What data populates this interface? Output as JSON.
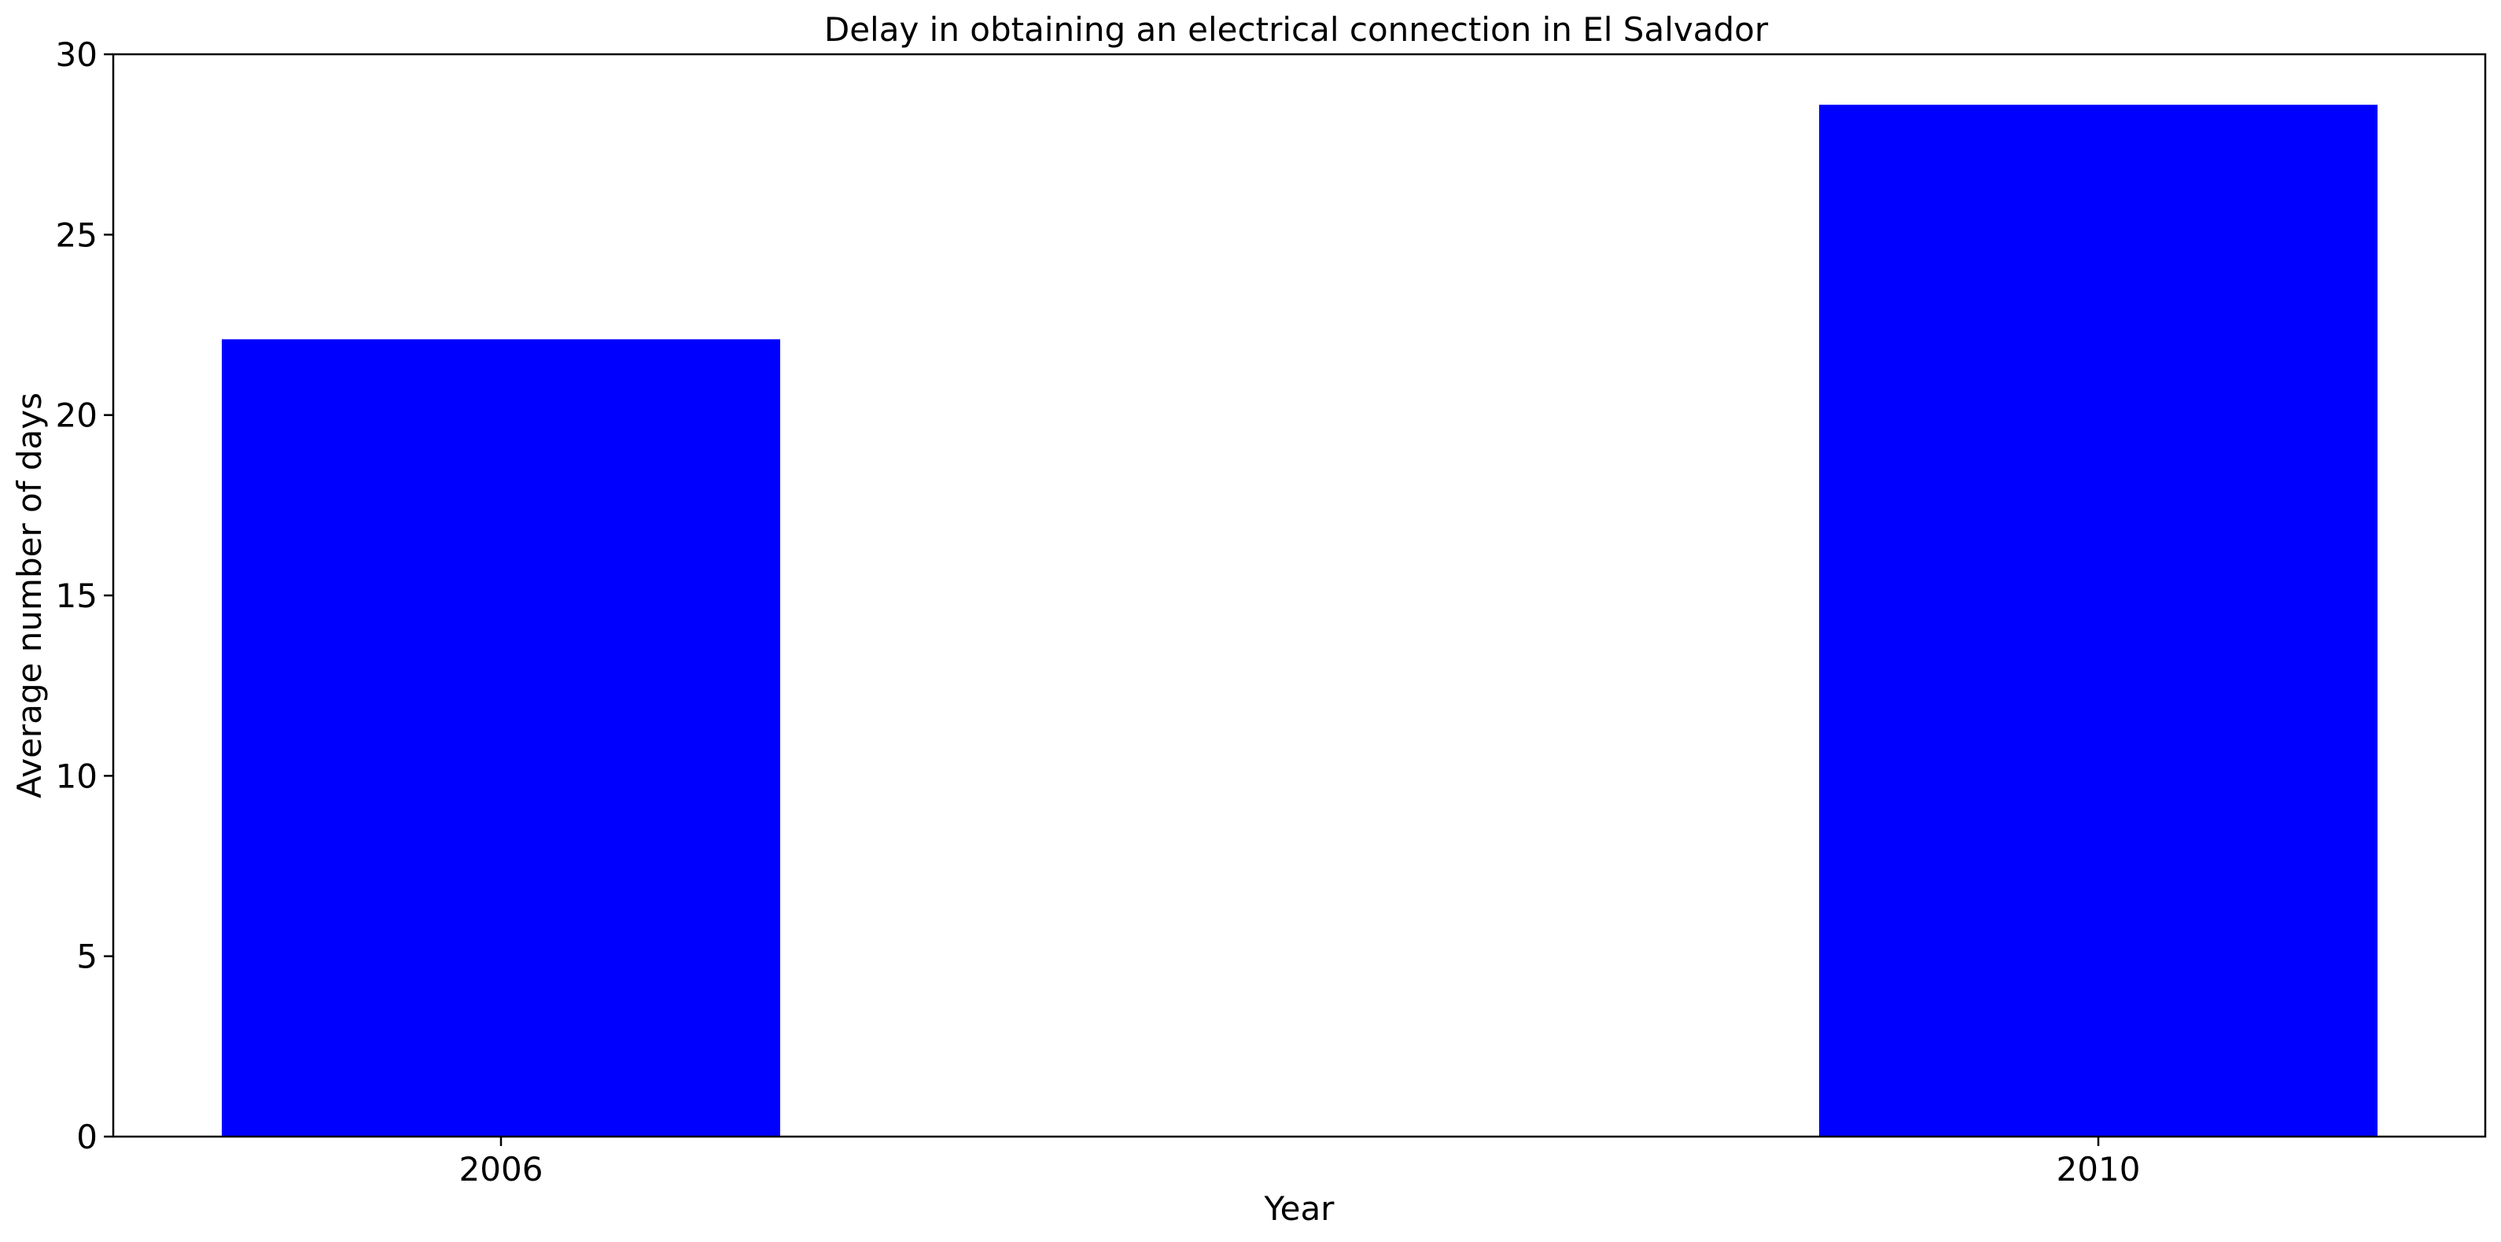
{
  "chart_data": {
    "type": "bar",
    "title": "Delay in obtaining an electrical connection in El Salvador",
    "xlabel": "Year",
    "ylabel": "Average number of days",
    "categories": [
      "2006",
      "2010"
    ],
    "values": [
      22.1,
      28.6
    ],
    "ylim": [
      0,
      30
    ],
    "yticks": [
      "0",
      "5",
      "10",
      "15",
      "20",
      "25",
      "30"
    ],
    "grid": false,
    "legend": "none",
    "bar_color": "#0000ff"
  }
}
